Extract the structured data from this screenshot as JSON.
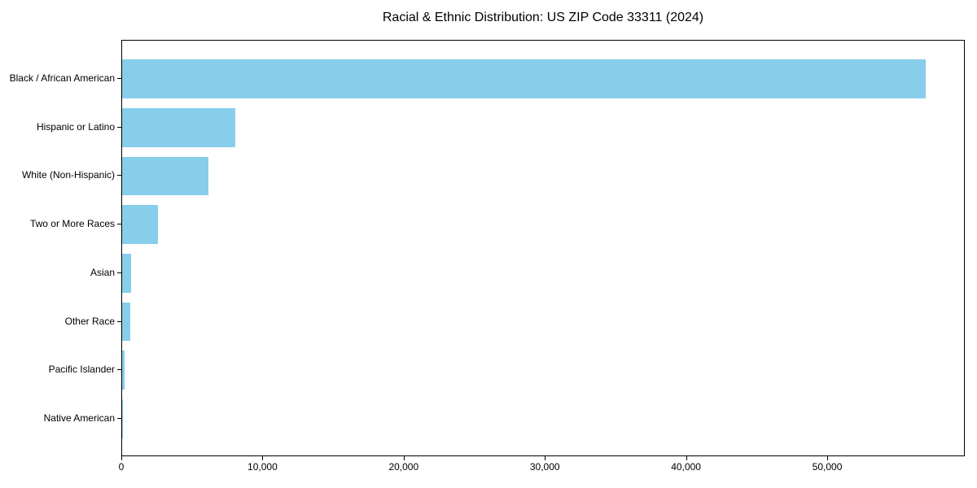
{
  "chart_data": {
    "type": "bar",
    "orientation": "horizontal",
    "title": "Racial & Ethnic Distribution: US ZIP Code 33311 (2024)",
    "categories": [
      "Black / African American",
      "Hispanic or Latino",
      "White (Non-Hispanic)",
      "Two or More Races",
      "Asian",
      "Other Race",
      "Pacific Islander",
      "Native American"
    ],
    "values": [
      56900,
      8000,
      6100,
      2550,
      650,
      570,
      150,
      40
    ],
    "xlabel": "",
    "ylabel": "",
    "xlim": [
      0,
      59745
    ],
    "x_ticks": [
      0,
      10000,
      20000,
      30000,
      40000,
      50000
    ],
    "x_tick_labels": [
      "0",
      "10,000",
      "20,000",
      "30,000",
      "40,000",
      "50,000"
    ],
    "bar_color": "#87ceeb",
    "background_color": "#ffffff",
    "axis_color": "#000000",
    "grid": false,
    "legend": null,
    "bar_height_fraction": 0.8
  }
}
